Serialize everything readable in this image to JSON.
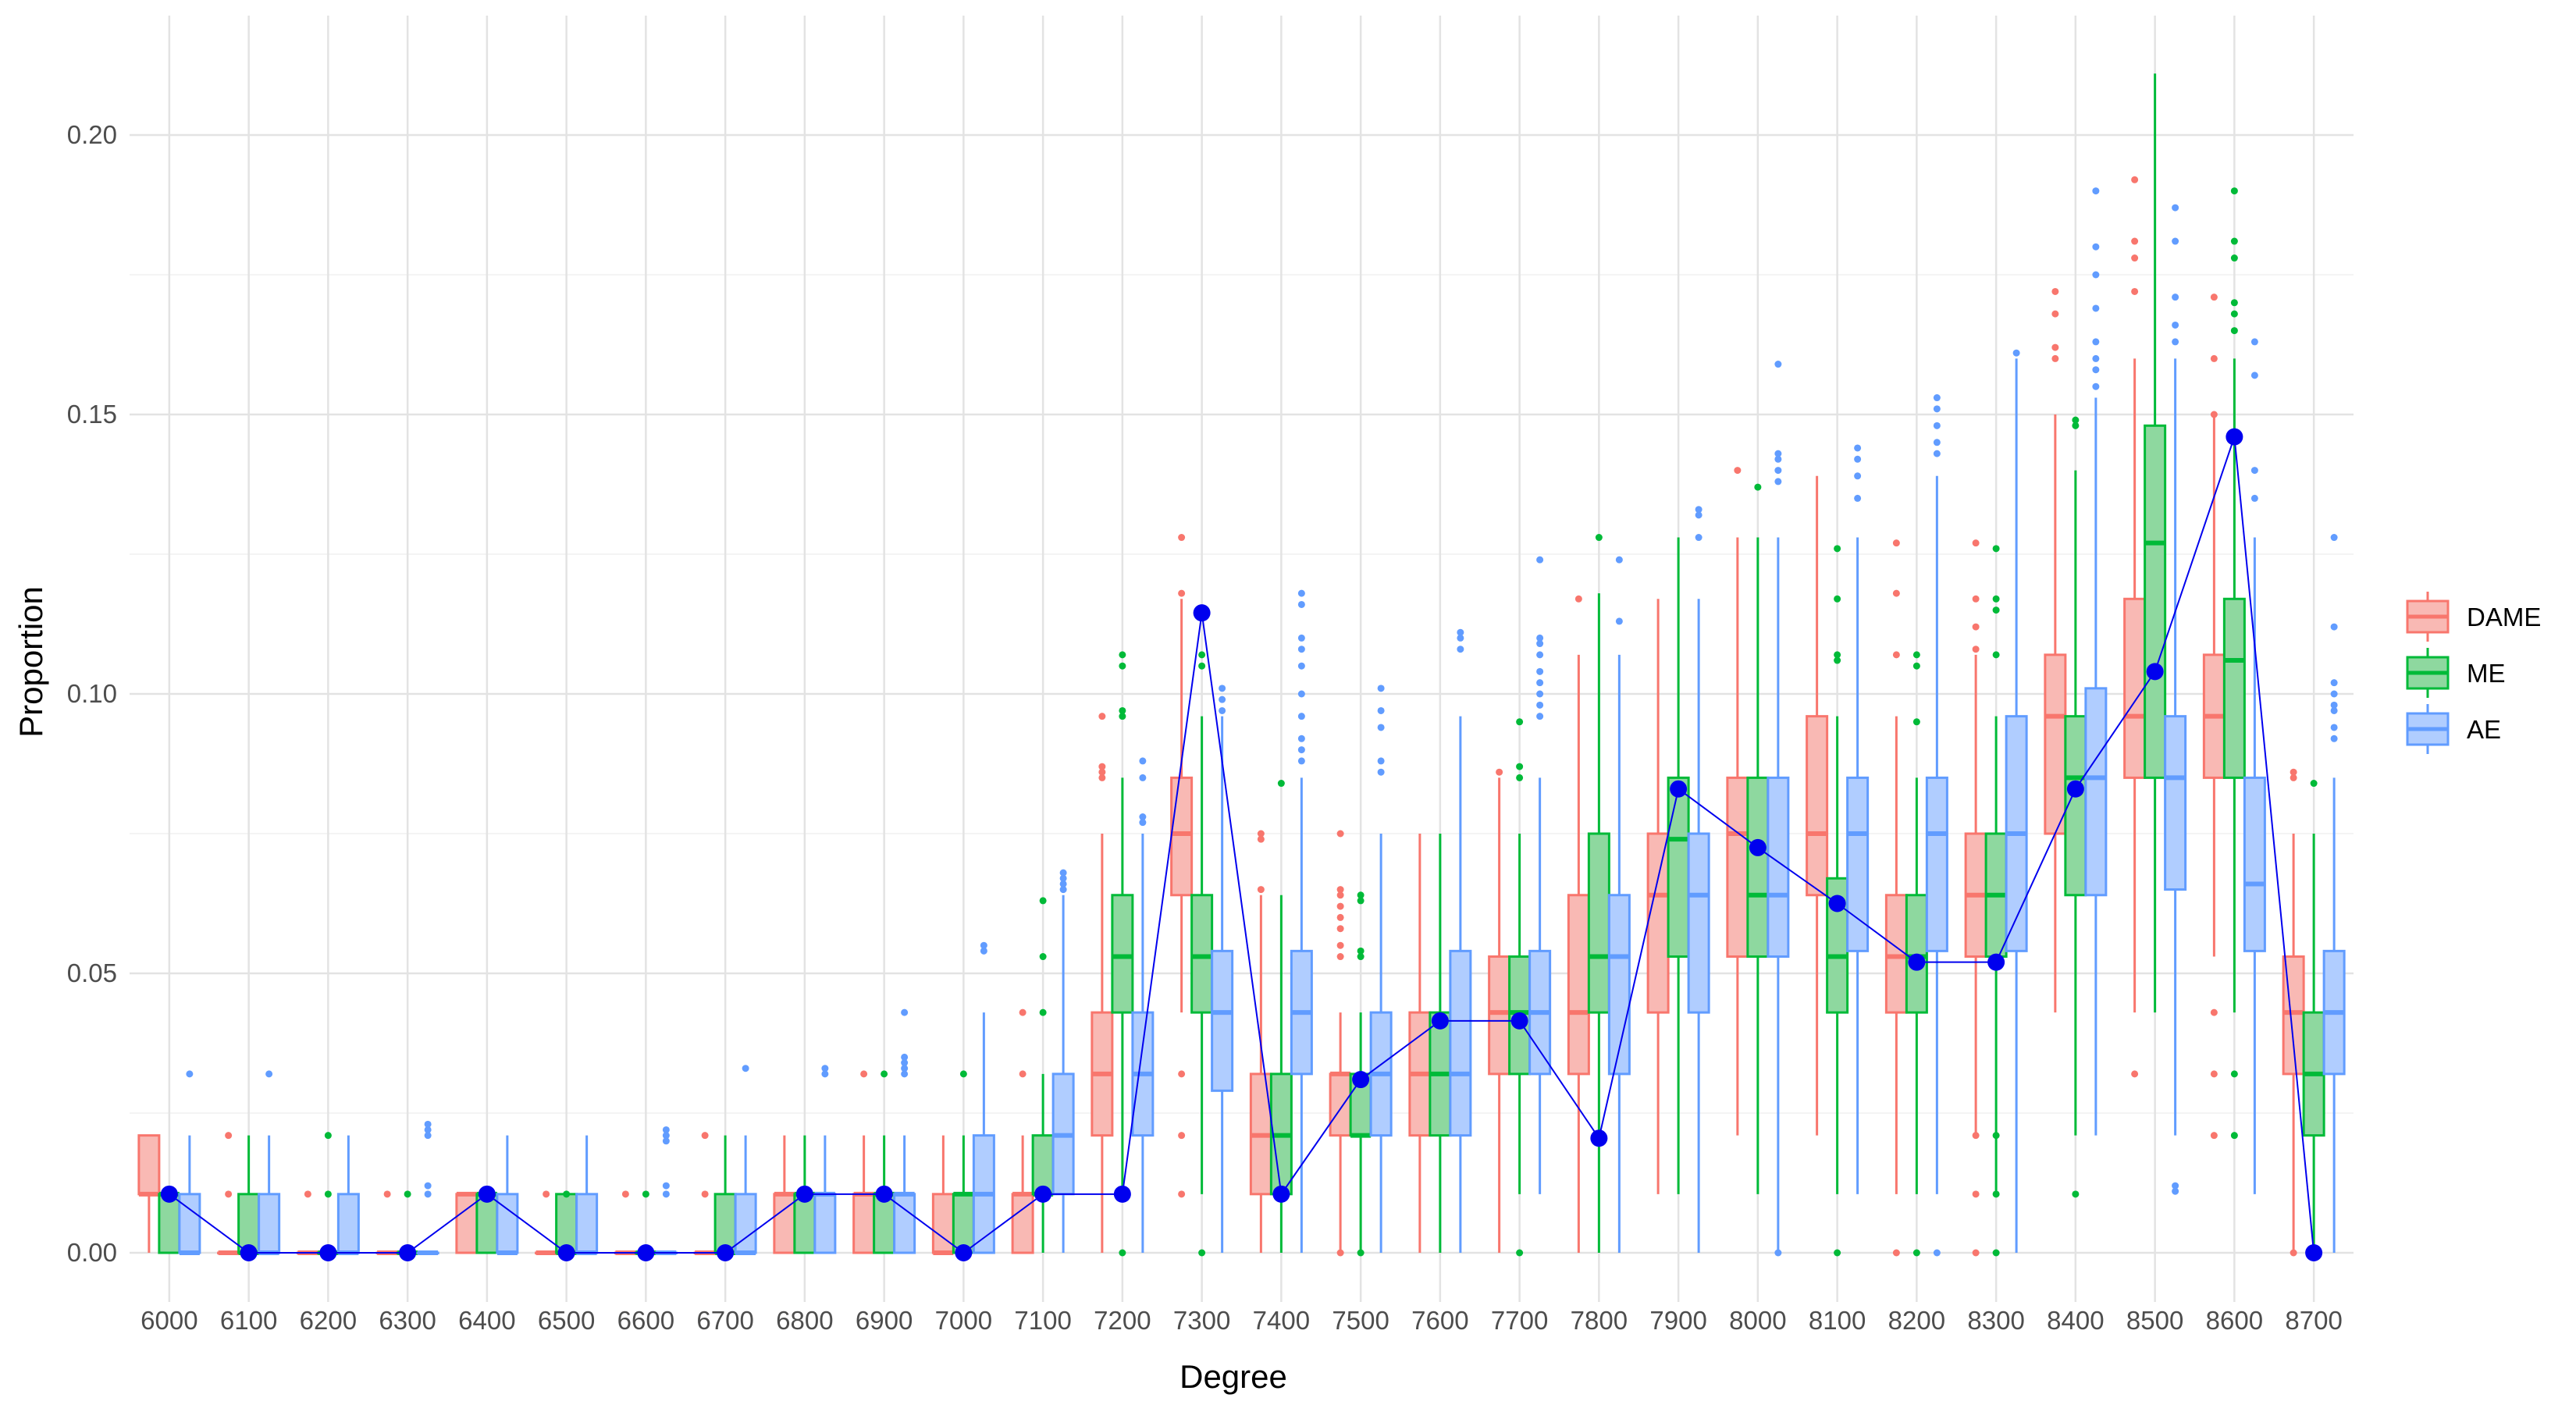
{
  "chart_data": {
    "type": "box",
    "xlabel": "Degree",
    "ylabel": "Proportion",
    "ylim": [
      -0.01,
      0.222
    ],
    "y_ticks": [
      "0.00",
      "0.05",
      "0.10",
      "0.15",
      "0.20"
    ],
    "grid": true,
    "legend_position": "right",
    "categories": [
      "6000",
      "6100",
      "6200",
      "6300",
      "6400",
      "6500",
      "6600",
      "6700",
      "6800",
      "6900",
      "7000",
      "7100",
      "7200",
      "7300",
      "7400",
      "7500",
      "7600",
      "7700",
      "7800",
      "7900",
      "8000",
      "8100",
      "8200",
      "8300",
      "8400",
      "8500",
      "8600",
      "8700"
    ],
    "series": [
      {
        "name": "DAME",
        "color": "#F8766D",
        "fill": "#F9B9B4",
        "boxes": [
          [
            0.0,
            0.0105,
            0.0105,
            0.021,
            0.021
          ],
          [
            0.0,
            0.0,
            0.0,
            0.0,
            0.0
          ],
          [
            0.0,
            0.0,
            0.0,
            0.0,
            0.0
          ],
          [
            0.0,
            0.0,
            0.0,
            0.0,
            0.0
          ],
          [
            0.0,
            0.0,
            0.0105,
            0.0105,
            0.0105
          ],
          [
            0.0,
            0.0,
            0.0,
            0.0,
            0.0
          ],
          [
            0.0,
            0.0,
            0.0,
            0.0,
            0.0
          ],
          [
            0.0,
            0.0,
            0.0,
            0.0,
            0.0
          ],
          [
            0.0,
            0.0,
            0.0105,
            0.0105,
            0.021
          ],
          [
            0.0,
            0.0,
            0.0105,
            0.0105,
            0.021
          ],
          [
            0.0,
            0.0,
            0.0,
            0.0105,
            0.021
          ],
          [
            0.0,
            0.0,
            0.0105,
            0.0105,
            0.021
          ],
          [
            0.0,
            0.021,
            0.032,
            0.043,
            0.075
          ],
          [
            0.043,
            0.064,
            0.075,
            0.085,
            0.117
          ],
          [
            0.0,
            0.0105,
            0.021,
            0.032,
            0.064
          ],
          [
            0.0,
            0.021,
            0.032,
            0.032,
            0.043
          ],
          [
            0.0,
            0.021,
            0.032,
            0.043,
            0.075
          ],
          [
            0.0,
            0.032,
            0.043,
            0.053,
            0.085
          ],
          [
            0.0,
            0.032,
            0.043,
            0.064,
            0.107
          ],
          [
            0.0105,
            0.043,
            0.064,
            0.075,
            0.117
          ],
          [
            0.021,
            0.053,
            0.075,
            0.085,
            0.128
          ],
          [
            0.021,
            0.064,
            0.075,
            0.096,
            0.139
          ],
          [
            0.0105,
            0.043,
            0.053,
            0.064,
            0.096
          ],
          [
            0.021,
            0.053,
            0.064,
            0.075,
            0.107
          ],
          [
            0.043,
            0.075,
            0.096,
            0.107,
            0.15
          ],
          [
            0.043,
            0.085,
            0.096,
            0.117,
            0.16
          ],
          [
            0.053,
            0.085,
            0.096,
            0.107,
            0.15
          ],
          [
            0.0,
            0.032,
            0.043,
            0.053,
            0.075
          ]
        ],
        "outliers": [
          [],
          [
            0.0105,
            0.021
          ],
          [
            0.0105
          ],
          [
            0.0105
          ],
          [],
          [
            0.0105
          ],
          [
            0.0105
          ],
          [
            0.0105,
            0.021
          ],
          [],
          [
            0.032
          ],
          [],
          [
            0.032,
            0.043
          ],
          [
            0.085,
            0.086,
            0.087,
            0.096
          ],
          [
            0.0105,
            0.021,
            0.032,
            0.118,
            0.128
          ],
          [
            0.065,
            0.074,
            0.075
          ],
          [
            0.0,
            0.053,
            0.055,
            0.058,
            0.06,
            0.062,
            0.064,
            0.065,
            0.075
          ],
          [],
          [
            0.086
          ],
          [
            0.117
          ],
          [],
          [
            0.14
          ],
          [],
          [
            0.0,
            0.107,
            0.118,
            0.127
          ],
          [
            0.0,
            0.0105,
            0.021,
            0.108,
            0.112,
            0.117,
            0.127
          ],
          [
            0.16,
            0.162,
            0.168,
            0.172
          ],
          [
            0.032,
            0.172,
            0.178,
            0.181,
            0.192
          ],
          [
            0.021,
            0.032,
            0.043,
            0.15,
            0.16,
            0.171
          ],
          [
            0.0,
            0.085,
            0.086
          ]
        ]
      },
      {
        "name": "ME",
        "color": "#00BA38",
        "fill": "#8ED89F",
        "boxes": [
          [
            0.0,
            0.0,
            0.0105,
            0.0105,
            0.0105
          ],
          [
            0.0,
            0.0,
            0.0,
            0.0105,
            0.021
          ],
          [
            0.0,
            0.0,
            0.0,
            0.0,
            0.0
          ],
          [
            0.0,
            0.0,
            0.0,
            0.0,
            0.0
          ],
          [
            0.0,
            0.0,
            0.0105,
            0.0105,
            0.0105
          ],
          [
            0.0,
            0.0,
            0.0,
            0.0105,
            0.0105
          ],
          [
            0.0,
            0.0,
            0.0,
            0.0,
            0.0
          ],
          [
            0.0,
            0.0,
            0.0,
            0.0105,
            0.021
          ],
          [
            0.0,
            0.0,
            0.0105,
            0.0105,
            0.021
          ],
          [
            0.0,
            0.0,
            0.0105,
            0.0105,
            0.021
          ],
          [
            0.0,
            0.0,
            0.0105,
            0.0105,
            0.021
          ],
          [
            0.0,
            0.0105,
            0.0105,
            0.021,
            0.032
          ],
          [
            0.0105,
            0.043,
            0.053,
            0.064,
            0.085
          ],
          [
            0.0105,
            0.043,
            0.053,
            0.064,
            0.096
          ],
          [
            0.0,
            0.0105,
            0.021,
            0.032,
            0.064
          ],
          [
            0.0,
            0.021,
            0.021,
            0.032,
            0.043
          ],
          [
            0.0,
            0.021,
            0.032,
            0.043,
            0.075
          ],
          [
            0.0105,
            0.032,
            0.043,
            0.053,
            0.075
          ],
          [
            0.0,
            0.043,
            0.053,
            0.075,
            0.118
          ],
          [
            0.0105,
            0.053,
            0.074,
            0.085,
            0.128
          ],
          [
            0.0105,
            0.053,
            0.064,
            0.085,
            0.128
          ],
          [
            0.0105,
            0.043,
            0.053,
            0.067,
            0.096
          ],
          [
            0.0105,
            0.043,
            0.053,
            0.064,
            0.085
          ],
          [
            0.0105,
            0.053,
            0.064,
            0.075,
            0.096
          ],
          [
            0.021,
            0.064,
            0.085,
            0.096,
            0.14
          ],
          [
            0.043,
            0.085,
            0.127,
            0.148,
            0.211
          ],
          [
            0.043,
            0.085,
            0.106,
            0.117,
            0.16
          ],
          [
            0.0,
            0.021,
            0.032,
            0.043,
            0.075
          ]
        ],
        "outliers": [
          [],
          [],
          [
            0.0105,
            0.021
          ],
          [
            0.0105
          ],
          [],
          [
            0.0105
          ],
          [
            0.0105
          ],
          [],
          [],
          [
            0.032
          ],
          [
            0.032
          ],
          [
            0.043,
            0.053,
            0.063
          ],
          [
            0.0,
            0.096,
            0.097,
            0.105,
            0.107
          ],
          [
            0.0,
            0.105,
            0.107
          ],
          [
            0.084
          ],
          [
            0.0,
            0.053,
            0.054,
            0.063,
            0.064
          ],
          [],
          [
            0.0,
            0.085,
            0.087,
            0.095
          ],
          [
            0.128
          ],
          [],
          [
            0.137
          ],
          [
            0.0,
            0.106,
            0.107,
            0.117,
            0.126
          ],
          [
            0.0,
            0.095,
            0.105,
            0.107
          ],
          [
            0.0,
            0.0105,
            0.021,
            0.107,
            0.115,
            0.117,
            0.126
          ],
          [
            0.0105,
            0.148,
            0.149
          ],
          [],
          [
            0.021,
            0.032,
            0.165,
            0.168,
            0.17,
            0.178,
            0.181,
            0.19
          ],
          [
            0.084
          ]
        ]
      },
      {
        "name": "AE",
        "color": "#619CFF",
        "fill": "#B0CDFF",
        "boxes": [
          [
            0.0,
            0.0,
            0.0,
            0.0105,
            0.021
          ],
          [
            0.0,
            0.0,
            0.0,
            0.0105,
            0.021
          ],
          [
            0.0,
            0.0,
            0.0,
            0.0105,
            0.021
          ],
          [
            0.0,
            0.0,
            0.0,
            0.0,
            0.0
          ],
          [
            0.0,
            0.0,
            0.0,
            0.0105,
            0.021
          ],
          [
            0.0,
            0.0,
            0.0,
            0.0105,
            0.021
          ],
          [
            0.0,
            0.0,
            0.0,
            0.0,
            0.0
          ],
          [
            0.0,
            0.0,
            0.0,
            0.0105,
            0.021
          ],
          [
            0.0,
            0.0,
            0.0105,
            0.0105,
            0.021
          ],
          [
            0.0,
            0.0,
            0.0105,
            0.0105,
            0.021
          ],
          [
            0.0,
            0.0,
            0.0105,
            0.021,
            0.043
          ],
          [
            0.0,
            0.0105,
            0.021,
            0.032,
            0.064
          ],
          [
            0.0,
            0.021,
            0.032,
            0.043,
            0.075
          ],
          [
            0.0,
            0.029,
            0.043,
            0.054,
            0.096
          ],
          [
            0.0,
            0.032,
            0.043,
            0.054,
            0.085
          ],
          [
            0.0,
            0.021,
            0.032,
            0.043,
            0.075
          ],
          [
            0.0,
            0.021,
            0.032,
            0.054,
            0.096
          ],
          [
            0.0105,
            0.032,
            0.043,
            0.054,
            0.085
          ],
          [
            0.0,
            0.032,
            0.053,
            0.064,
            0.107
          ],
          [
            0.0,
            0.043,
            0.064,
            0.075,
            0.117
          ],
          [
            0.0,
            0.053,
            0.064,
            0.085,
            0.128
          ],
          [
            0.0105,
            0.054,
            0.075,
            0.085,
            0.128
          ],
          [
            0.0105,
            0.054,
            0.075,
            0.085,
            0.139
          ],
          [
            0.0,
            0.054,
            0.075,
            0.096,
            0.16
          ],
          [
            0.021,
            0.064,
            0.085,
            0.101,
            0.153
          ],
          [
            0.021,
            0.065,
            0.085,
            0.096,
            0.16
          ],
          [
            0.0105,
            0.054,
            0.066,
            0.085,
            0.128
          ],
          [
            0.0,
            0.032,
            0.043,
            0.054,
            0.085
          ]
        ],
        "outliers": [
          [
            0.032
          ],
          [
            0.032
          ],
          [],
          [
            0.0105,
            0.012,
            0.021,
            0.022,
            0.023
          ],
          [],
          [],
          [
            0.0105,
            0.012,
            0.02,
            0.021,
            0.022
          ],
          [
            0.033
          ],
          [
            0.032,
            0.033
          ],
          [
            0.032,
            0.033,
            0.034,
            0.035,
            0.043
          ],
          [
            0.054,
            0.055
          ],
          [
            0.065,
            0.066,
            0.067,
            0.068
          ],
          [
            0.077,
            0.078,
            0.085,
            0.088
          ],
          [
            0.097,
            0.099,
            0.101
          ],
          [
            0.088,
            0.09,
            0.092,
            0.096,
            0.1,
            0.105,
            0.108,
            0.11,
            0.116,
            0.118
          ],
          [
            0.086,
            0.088,
            0.094,
            0.097,
            0.101
          ],
          [
            0.108,
            0.11,
            0.111
          ],
          [
            0.096,
            0.098,
            0.1,
            0.102,
            0.104,
            0.107,
            0.109,
            0.11,
            0.124
          ],
          [
            0.113,
            0.124
          ],
          [
            0.128,
            0.132,
            0.133
          ],
          [
            0.0,
            0.138,
            0.14,
            0.142,
            0.143,
            0.159
          ],
          [
            0.135,
            0.139,
            0.142,
            0.144
          ],
          [
            0.0,
            0.143,
            0.145,
            0.148,
            0.151,
            0.153
          ],
          [
            0.161
          ],
          [
            0.155,
            0.158,
            0.16,
            0.163,
            0.169,
            0.175,
            0.18,
            0.19
          ],
          [
            0.011,
            0.012,
            0.163,
            0.166,
            0.171,
            0.181,
            0.187
          ],
          [
            0.135,
            0.14,
            0.157,
            0.163
          ],
          [
            0.092,
            0.094,
            0.097,
            0.098,
            0.1,
            0.102,
            0.112,
            0.128
          ]
        ]
      }
    ],
    "overlay_line": {
      "color": "#0000EE",
      "values": [
        0.0105,
        0.0,
        0.0,
        0.0,
        0.0105,
        0.0,
        0.0,
        0.0,
        0.0105,
        0.0105,
        0.0,
        0.0105,
        0.0105,
        0.1145,
        0.0105,
        0.031,
        0.0415,
        0.0415,
        0.0205,
        0.083,
        0.0725,
        0.0625,
        0.052,
        0.052,
        0.083,
        0.104,
        0.146,
        0.0
      ]
    }
  }
}
